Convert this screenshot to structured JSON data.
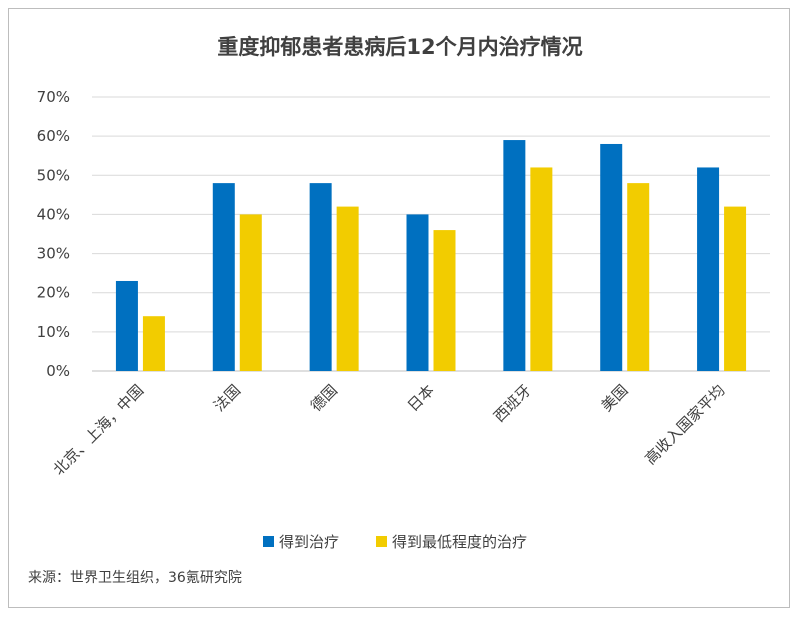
{
  "chart_data": {
    "type": "bar",
    "title": "重度抑郁患者患病后12个月内治疗情况",
    "categories": [
      "北京、上海，中国",
      "法国",
      "德国",
      "日本",
      "西班牙",
      "美国",
      "高收入国家平均"
    ],
    "series": [
      {
        "name": "得到治疗",
        "color": "#0070c0",
        "values": [
          23,
          48,
          48,
          40,
          59,
          58,
          52
        ]
      },
      {
        "name": "得到最低程度的治疗",
        "color": "#f2cc00",
        "values": [
          14,
          40,
          42,
          36,
          52,
          48,
          42
        ]
      }
    ],
    "ylim": [
      0,
      70
    ],
    "ytick_step": 10,
    "ytick_suffix": "%",
    "grid": true,
    "legend_position": "bottom"
  },
  "source": "来源：世界卫生组织，36氪研究院"
}
